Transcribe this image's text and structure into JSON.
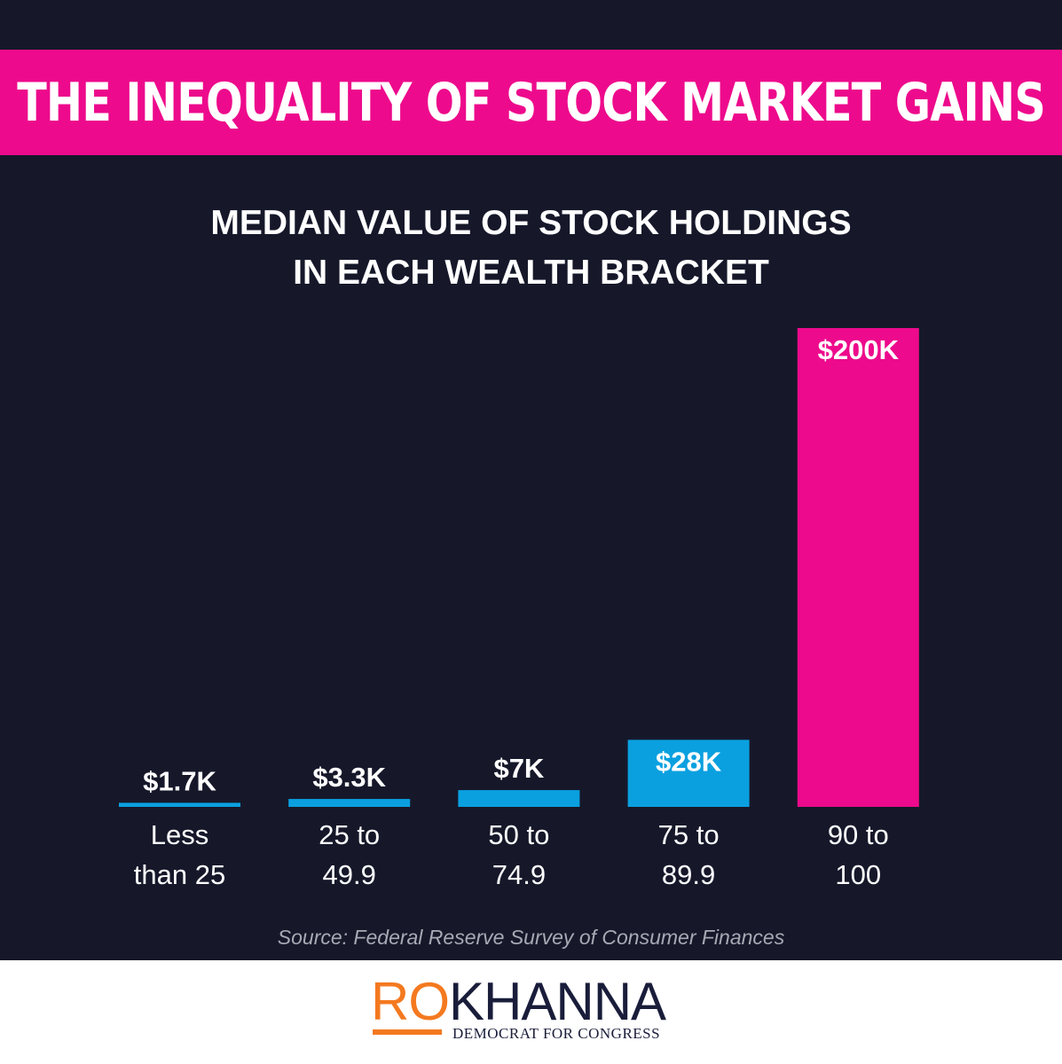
{
  "banner": {
    "title": "THE INEQUALITY OF STOCK MARKET GAINS"
  },
  "chart_data": {
    "type": "bar",
    "title_lines": [
      "MEDIAN VALUE OF STOCK HOLDINGS",
      "IN EACH WEALTH BRACKET"
    ],
    "categories": [
      [
        "Less",
        "than 25"
      ],
      [
        "25 to",
        "49.9"
      ],
      [
        "50 to",
        "74.9"
      ],
      [
        "75 to",
        "89.9"
      ],
      [
        "90 to",
        "100"
      ]
    ],
    "values": [
      1.7,
      3.3,
      7,
      28,
      200
    ],
    "value_labels": [
      "$1.7K",
      "$3.3K",
      "$7K",
      "$28K",
      "$200K"
    ],
    "unit": "thousands of dollars",
    "ylim": [
      0,
      200
    ],
    "bar_colors": [
      "#0aa0e0",
      "#0aa0e0",
      "#0aa0e0",
      "#0aa0e0",
      "#ed0a8c"
    ],
    "label_inside": [
      false,
      false,
      false,
      true,
      true
    ]
  },
  "source": "Source: Federal Reserve Survey of Consumer Finances",
  "footer": {
    "logo_ro": "RO",
    "logo_khanna": "KHANNA",
    "tagline": "DEMOCRAT FOR CONGRESS"
  },
  "colors": {
    "background": "#16182a",
    "accent_pink": "#ed0a8c",
    "accent_blue": "#0aa0e0",
    "logo_orange": "#f47920",
    "logo_navy": "#1a1d3a"
  }
}
